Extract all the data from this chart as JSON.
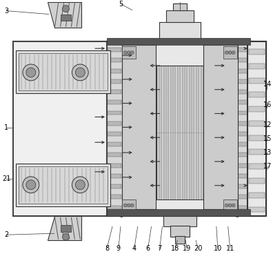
{
  "bg": "#ffffff",
  "lc": "#333333",
  "gray1": "#cccccc",
  "gray2": "#999999",
  "gray3": "#666666",
  "gray4": "#444444",
  "gray_light": "#e8e8e8",
  "gray_mid": "#bbbbbb",
  "white": "#f8f8f8",
  "fig_w": 3.96,
  "fig_h": 3.68,
  "dpi": 100
}
